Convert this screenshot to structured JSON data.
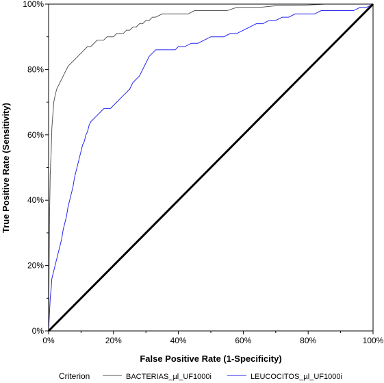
{
  "chart_data": {
    "type": "line",
    "title": "",
    "xlabel": "False Positive Rate (1-Specificity)",
    "ylabel": "True Positive Rate (Sensitivity)",
    "xlim": [
      0,
      100
    ],
    "ylim": [
      0,
      100
    ],
    "x_ticks": [
      "0%",
      "20%",
      "40%",
      "60%",
      "80%",
      "100%"
    ],
    "y_ticks": [
      "0%",
      "20%",
      "40%",
      "60%",
      "80%",
      "100%"
    ],
    "grid": false,
    "legend_title": "Criterion",
    "legend_position": "bottom",
    "series": [
      {
        "name": "BACTERIAS_µl_UF1000i",
        "color": "#555555",
        "points": [
          [
            0,
            0
          ],
          [
            0.3,
            36
          ],
          [
            0.5,
            48
          ],
          [
            0.8,
            55
          ],
          [
            1,
            62
          ],
          [
            1.3,
            66
          ],
          [
            1.6,
            70
          ],
          [
            2,
            72
          ],
          [
            2.5,
            74
          ],
          [
            3,
            75
          ],
          [
            3.5,
            76
          ],
          [
            4,
            77
          ],
          [
            5,
            79
          ],
          [
            6,
            81
          ],
          [
            7,
            82
          ],
          [
            8,
            83
          ],
          [
            9,
            84
          ],
          [
            10,
            85
          ],
          [
            11,
            86
          ],
          [
            12,
            87
          ],
          [
            13,
            87
          ],
          [
            14,
            88
          ],
          [
            15,
            89
          ],
          [
            16,
            89
          ],
          [
            17,
            89
          ],
          [
            18,
            90
          ],
          [
            19,
            90
          ],
          [
            20,
            90
          ],
          [
            21,
            91
          ],
          [
            22,
            91
          ],
          [
            23,
            91
          ],
          [
            24,
            92
          ],
          [
            25,
            92
          ],
          [
            26,
            93
          ],
          [
            27,
            93
          ],
          [
            28,
            94
          ],
          [
            29,
            94
          ],
          [
            30,
            95
          ],
          [
            31,
            95
          ],
          [
            32,
            96
          ],
          [
            33,
            96
          ],
          [
            35,
            97
          ],
          [
            37,
            97
          ],
          [
            40,
            97
          ],
          [
            43,
            97
          ],
          [
            45,
            98
          ],
          [
            50,
            98
          ],
          [
            55,
            98
          ],
          [
            58,
            99
          ],
          [
            60,
            99
          ],
          [
            65,
            99
          ],
          [
            70,
            99.5
          ],
          [
            75,
            99.5
          ],
          [
            80,
            99.7
          ],
          [
            85,
            100
          ],
          [
            90,
            100
          ],
          [
            95,
            100
          ],
          [
            100,
            100
          ]
        ]
      },
      {
        "name": "LEUCOCITOS_µl_UF1000i",
        "color": "#2424ee",
        "points": [
          [
            0,
            0
          ],
          [
            0.3,
            6
          ],
          [
            0.5,
            10
          ],
          [
            0.8,
            13
          ],
          [
            1,
            16
          ],
          [
            1.5,
            18
          ],
          [
            2,
            20
          ],
          [
            2.5,
            22
          ],
          [
            3,
            24
          ],
          [
            3.5,
            26
          ],
          [
            4,
            28
          ],
          [
            4.5,
            31
          ],
          [
            5,
            33
          ],
          [
            5.5,
            35
          ],
          [
            6,
            38
          ],
          [
            6.5,
            40
          ],
          [
            7,
            42
          ],
          [
            7.5,
            44
          ],
          [
            8,
            47
          ],
          [
            8.5,
            49
          ],
          [
            9,
            51
          ],
          [
            9.5,
            53
          ],
          [
            10,
            55
          ],
          [
            10.5,
            57
          ],
          [
            11,
            58
          ],
          [
            11.5,
            60
          ],
          [
            12,
            61
          ],
          [
            12.5,
            63
          ],
          [
            13,
            64
          ],
          [
            14,
            65
          ],
          [
            15,
            66
          ],
          [
            16,
            67
          ],
          [
            17,
            68
          ],
          [
            18,
            68
          ],
          [
            19,
            68
          ],
          [
            20,
            69
          ],
          [
            21,
            70
          ],
          [
            22,
            71
          ],
          [
            23,
            72
          ],
          [
            24,
            73
          ],
          [
            25,
            74
          ],
          [
            26,
            76
          ],
          [
            27,
            77
          ],
          [
            28,
            78
          ],
          [
            29,
            80
          ],
          [
            30,
            82
          ],
          [
            31,
            84
          ],
          [
            32,
            85
          ],
          [
            33,
            86
          ],
          [
            35,
            86
          ],
          [
            37,
            86
          ],
          [
            39,
            86
          ],
          [
            40,
            87
          ],
          [
            42,
            87
          ],
          [
            44,
            88
          ],
          [
            46,
            88
          ],
          [
            48,
            89
          ],
          [
            50,
            90
          ],
          [
            52,
            90
          ],
          [
            54,
            90
          ],
          [
            56,
            91
          ],
          [
            58,
            91
          ],
          [
            60,
            92
          ],
          [
            62,
            93
          ],
          [
            64,
            94
          ],
          [
            66,
            94
          ],
          [
            68,
            95
          ],
          [
            70,
            95
          ],
          [
            72,
            96
          ],
          [
            74,
            96
          ],
          [
            76,
            97
          ],
          [
            78,
            97
          ],
          [
            80,
            97
          ],
          [
            82,
            97
          ],
          [
            84,
            98
          ],
          [
            86,
            98
          ],
          [
            88,
            98
          ],
          [
            90,
            98
          ],
          [
            92,
            98
          ],
          [
            94,
            98
          ],
          [
            96,
            99
          ],
          [
            98,
            99
          ],
          [
            100,
            100
          ]
        ]
      },
      {
        "name": "",
        "color": "#000000",
        "points": [
          [
            0,
            0
          ],
          [
            100,
            100
          ]
        ]
      }
    ]
  }
}
